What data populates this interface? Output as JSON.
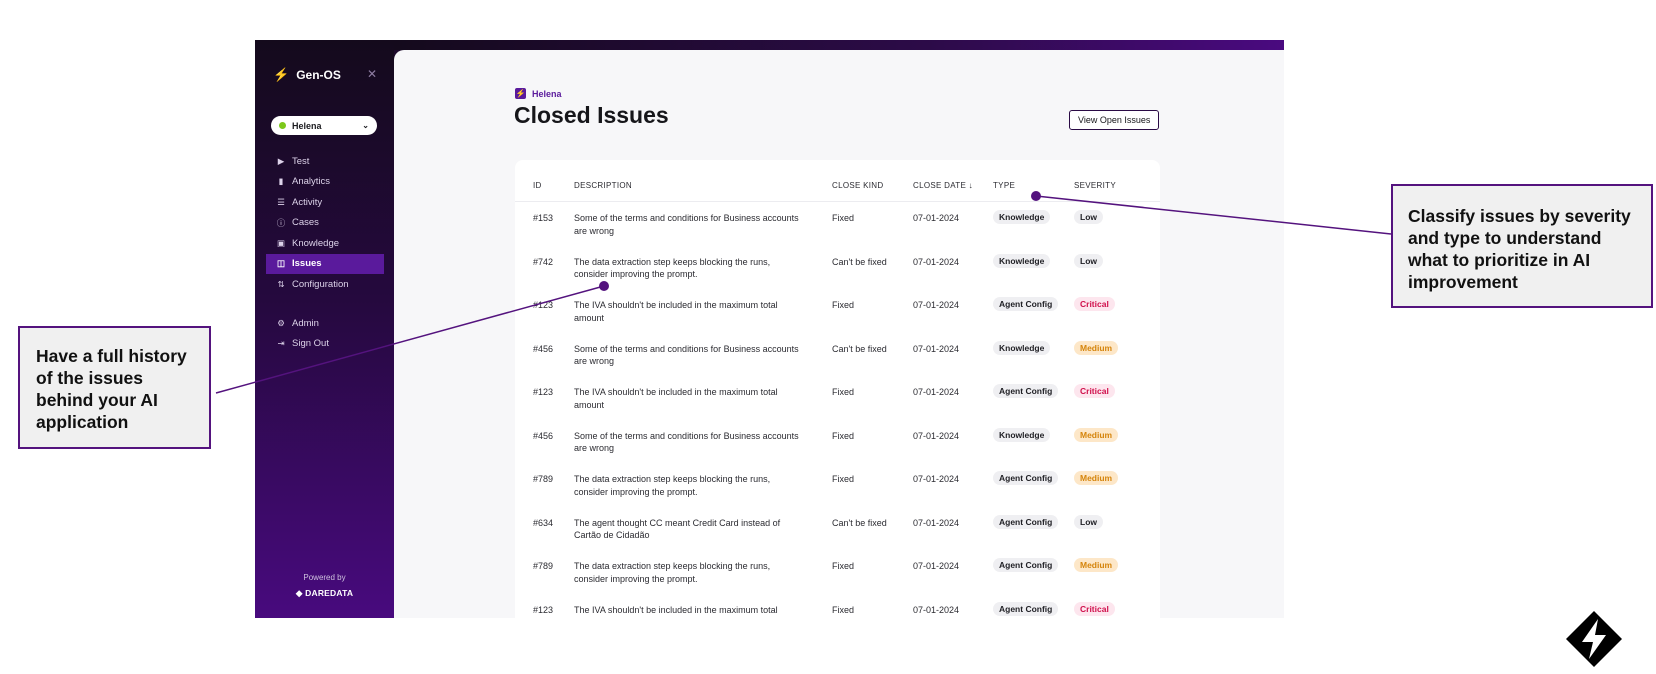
{
  "sidebar": {
    "brand": "Gen-OS",
    "close_icon": "close-icon",
    "app_selector": "Helena",
    "nav": [
      {
        "label": "Test",
        "icon": "play-icon"
      },
      {
        "label": "Analytics",
        "icon": "bar-chart-icon"
      },
      {
        "label": "Activity",
        "icon": "list-icon"
      },
      {
        "label": "Cases",
        "icon": "info-icon"
      },
      {
        "label": "Knowledge",
        "icon": "book-icon"
      },
      {
        "label": "Issues",
        "icon": "alert-square-icon",
        "active": true
      },
      {
        "label": "Configuration",
        "icon": "sort-icon"
      }
    ],
    "nav_secondary": [
      {
        "label": "Admin",
        "icon": "gear-icon"
      },
      {
        "label": "Sign Out",
        "icon": "sign-out-icon"
      }
    ],
    "powered_by": "Powered by",
    "company": "DAREDATA"
  },
  "header": {
    "breadcrumb": "Helena",
    "title": "Closed Issues",
    "view_open_button": "View Open Issues"
  },
  "table": {
    "columns": {
      "id": "ID",
      "description": "DESCRIPTION",
      "close_kind": "CLOSE KIND",
      "close_date": "CLOSE DATE",
      "type": "TYPE",
      "severity": "SEVERITY"
    },
    "sort_icon": "arrow-down-icon",
    "rows": [
      {
        "id": "#153",
        "desc": "Some of the terms and conditions for Business accounts are wrong",
        "kind": "Fixed",
        "date": "07-01-2024",
        "type": "Knowledge",
        "severity": "Low"
      },
      {
        "id": "#742",
        "desc": "The data extraction step keeps blocking the runs, consider improving the prompt.",
        "kind": "Can't be fixed",
        "date": "07-01-2024",
        "type": "Knowledge",
        "severity": "Low"
      },
      {
        "id": "#123",
        "desc": "The IVA shouldn't be included in the maximum total amount",
        "kind": "Fixed",
        "date": "07-01-2024",
        "type": "Agent Config",
        "severity": "Critical"
      },
      {
        "id": "#456",
        "desc": "Some of the terms and conditions for Business accounts are wrong",
        "kind": "Can't be fixed",
        "date": "07-01-2024",
        "type": "Knowledge",
        "severity": "Medium"
      },
      {
        "id": "#123",
        "desc": "The IVA shouldn't be included in the maximum total amount",
        "kind": "Fixed",
        "date": "07-01-2024",
        "type": "Agent Config",
        "severity": "Critical"
      },
      {
        "id": "#456",
        "desc": "Some of the terms and conditions for Business accounts are wrong",
        "kind": "Fixed",
        "date": "07-01-2024",
        "type": "Knowledge",
        "severity": "Medium"
      },
      {
        "id": "#789",
        "desc": "The data extraction step keeps blocking the runs, consider improving the prompt.",
        "kind": "Fixed",
        "date": "07-01-2024",
        "type": "Agent Config",
        "severity": "Medium"
      },
      {
        "id": "#634",
        "desc": "The agent thought CC meant Credit Card instead of Cartão de Cidadão",
        "kind": "Can't be fixed",
        "date": "07-01-2024",
        "type": "Agent Config",
        "severity": "Low"
      },
      {
        "id": "#789",
        "desc": "The data extraction step keeps blocking the runs, consider improving the prompt.",
        "kind": "Fixed",
        "date": "07-01-2024",
        "type": "Agent Config",
        "severity": "Medium"
      },
      {
        "id": "#123",
        "desc": "The IVA shouldn't be included in the maximum total amount",
        "kind": "Fixed",
        "date": "07-01-2024",
        "type": "Agent Config",
        "severity": "Critical"
      }
    ]
  },
  "annotations": {
    "left": "Have a full history of the issues behind your AI application",
    "right": "Classify issues by severity and type to understand what to prioritize in AI improvement"
  },
  "colors": {
    "accent": "#5a1a9c",
    "callout_border": "#54137e",
    "critical": "#d0104c",
    "medium": "#d5840b"
  }
}
